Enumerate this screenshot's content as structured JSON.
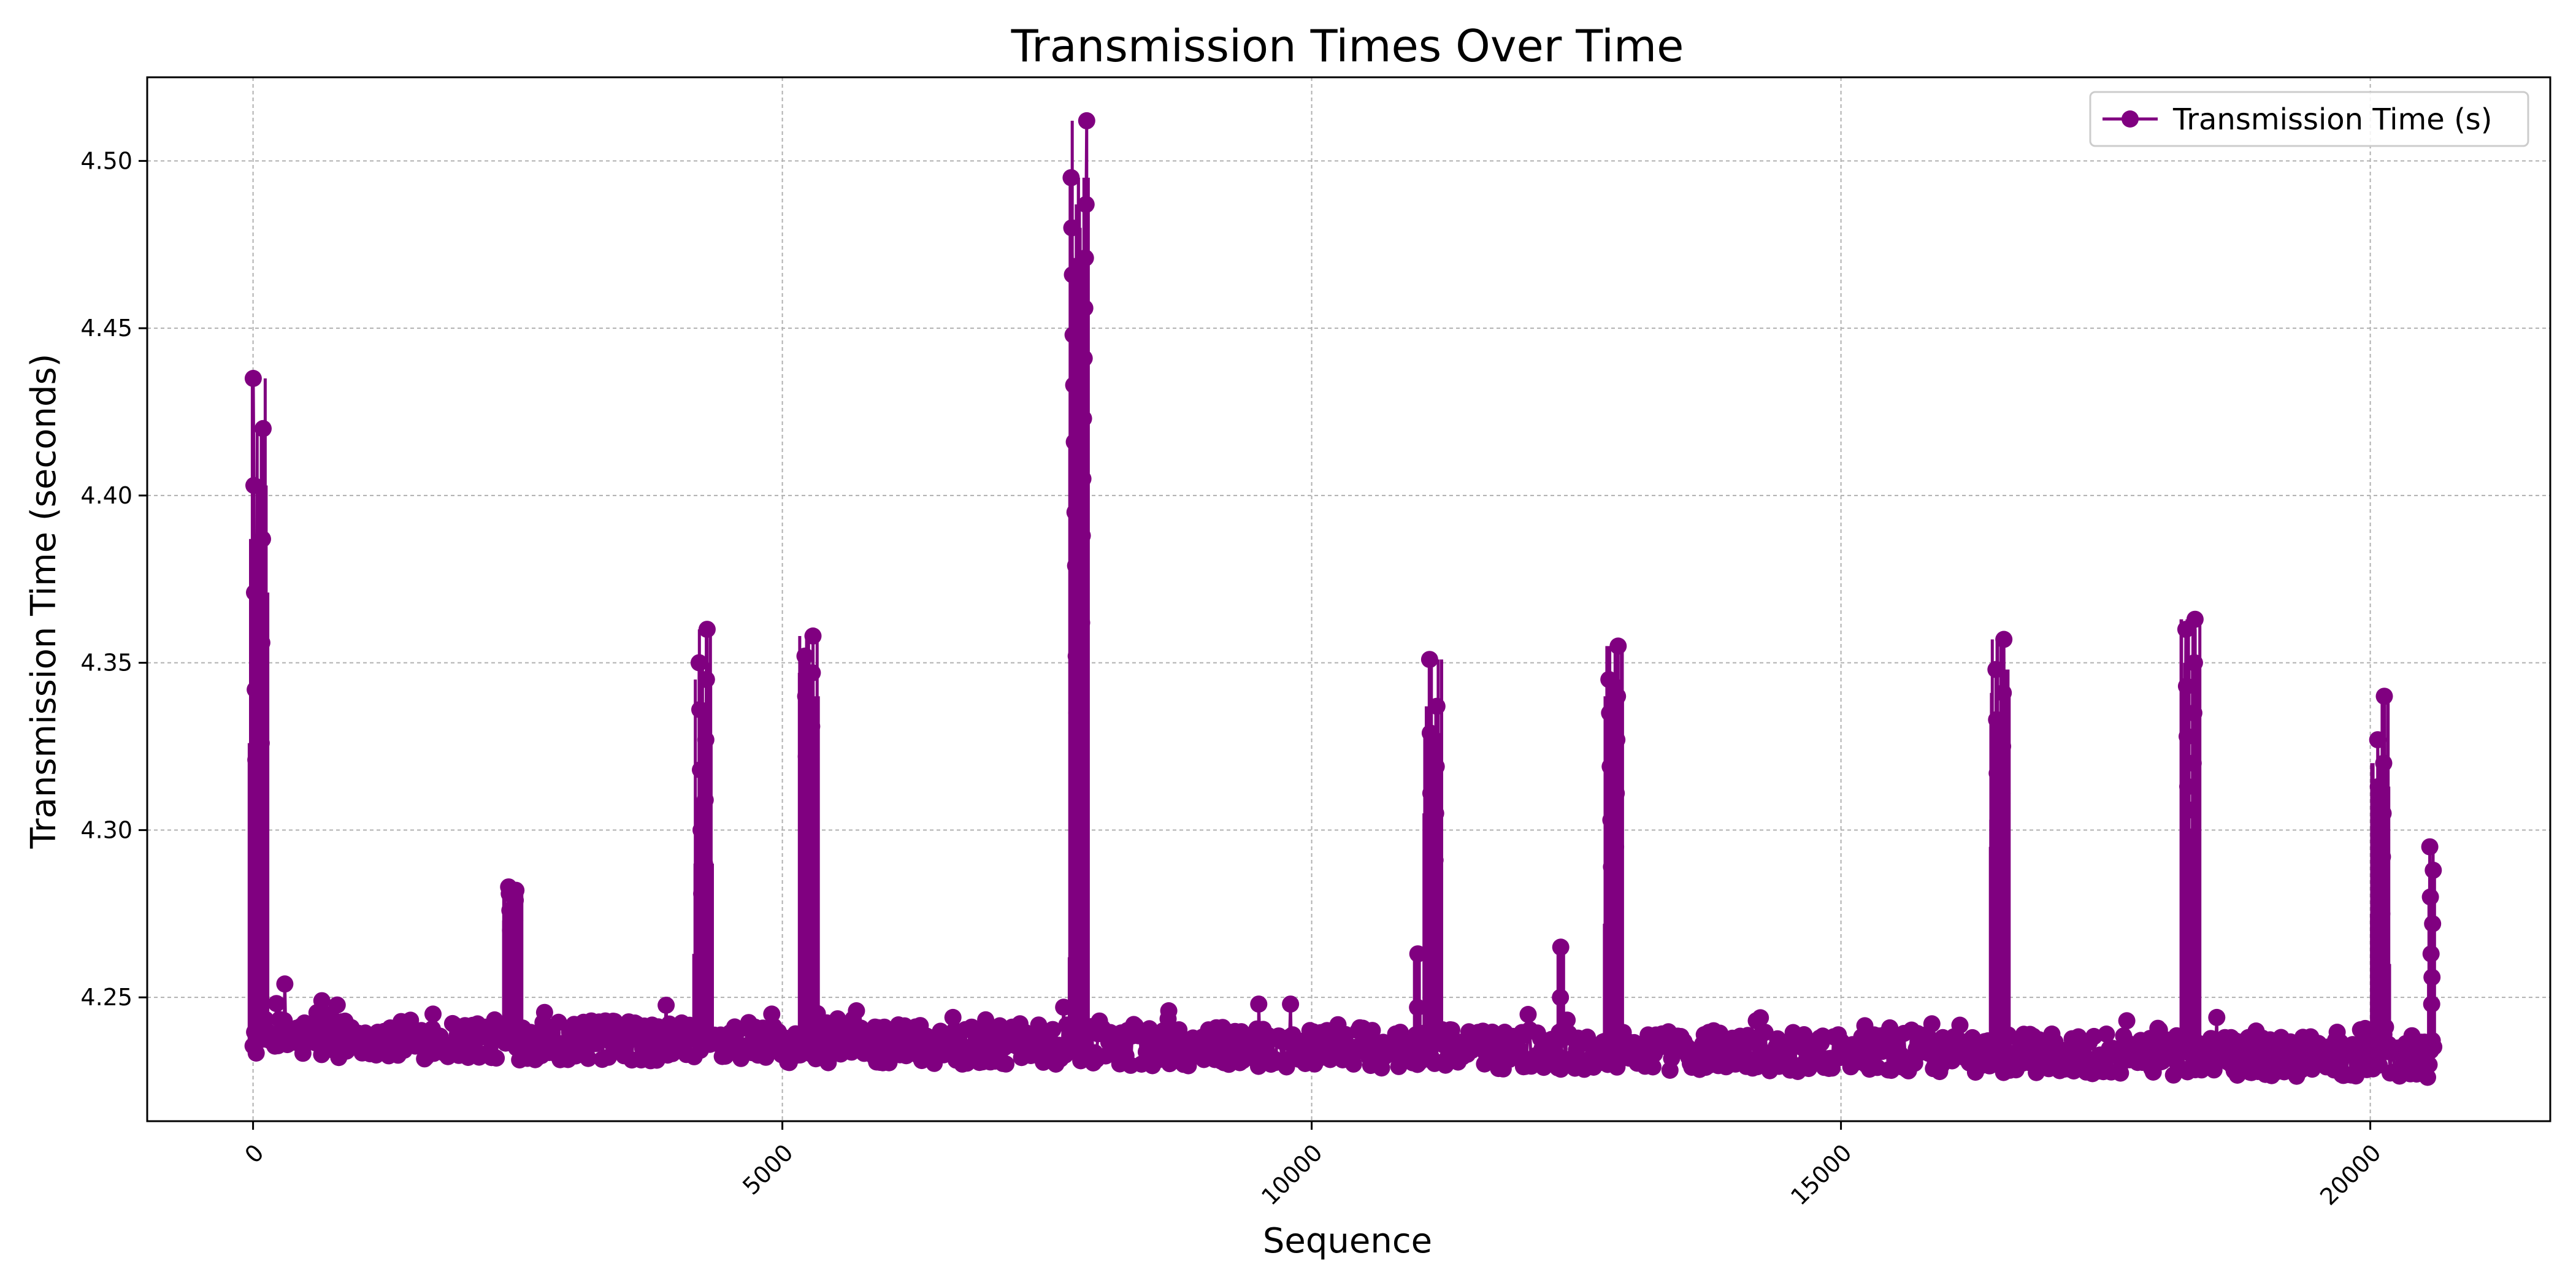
{
  "chart_data": {
    "type": "line",
    "title": "Transmission Times Over Time",
    "xlabel": "Sequence",
    "ylabel": "Transmission Time (seconds)",
    "xlim": [
      -1000,
      21700
    ],
    "ylim": [
      4.213,
      4.525
    ],
    "xticks": [
      0,
      5000,
      10000,
      15000,
      20000
    ],
    "xtick_labels": [
      "0",
      "5000",
      "10000",
      "15000",
      "20000"
    ],
    "xtick_rotation": 45,
    "yticks": [
      4.25,
      4.3,
      4.35,
      4.4,
      4.45,
      4.5
    ],
    "ytick_labels": [
      "4.25",
      "4.30",
      "4.35",
      "4.40",
      "4.45",
      "4.50"
    ],
    "grid": true,
    "legend_position": "top-right",
    "series": [
      {
        "name": "Transmission Time (s)",
        "color": "#800080",
        "marker": "circle",
        "approximate_point_count": 20600,
        "baseline": {
          "description": "dense band of points between about 4.229 and 4.245",
          "x_range": [
            0,
            20600
          ],
          "start_center": 4.238,
          "end_center": 4.232
        },
        "spikes": [
          {
            "x": 50,
            "peak": 4.435,
            "values": [
              4.249,
              4.261,
              4.277,
              4.28,
              4.293,
              4.297,
              4.305,
              4.31,
              4.321,
              4.326,
              4.342,
              4.356,
              4.371,
              4.387,
              4.403,
              4.42,
              4.435
            ]
          },
          {
            "x": 2450,
            "peak": 4.283,
            "values": [
              4.245,
              4.25,
              4.256,
              4.259,
              4.262,
              4.266,
              4.27,
              4.273,
              4.276,
              4.279,
              4.281,
              4.282,
              4.283
            ]
          },
          {
            "x": 4250,
            "peak": 4.36,
            "values": [
              4.247,
              4.255,
              4.263,
              4.272,
              4.281,
              4.29,
              4.3,
              4.309,
              4.318,
              4.327,
              4.336,
              4.345,
              4.35,
              4.36
            ]
          },
          {
            "x": 5250,
            "peak": 4.358,
            "values": [
              4.248,
              4.258,
              4.267,
              4.277,
              4.286,
              4.296,
              4.305,
              4.314,
              4.322,
              4.331,
              4.34,
              4.347,
              4.352,
              4.358
            ]
          },
          {
            "x": 7800,
            "peak": 4.512,
            "values": [
              4.252,
              4.262,
              4.275,
              4.29,
              4.305,
              4.32,
              4.335,
              4.343,
              4.352,
              4.362,
              4.379,
              4.388,
              4.395,
              4.405,
              4.416,
              4.423,
              4.433,
              4.441,
              4.448,
              4.456,
              4.466,
              4.471,
              4.48,
              4.487,
              4.495,
              4.512
            ]
          },
          {
            "x": 11000,
            "peak": 4.263,
            "values": [
              4.247,
              4.263
            ]
          },
          {
            "x": 11150,
            "peak": 4.351,
            "values": [
              4.25,
              4.258,
              4.265,
              4.279,
              4.287,
              4.291,
              4.296,
              4.305,
              4.311,
              4.319,
              4.329,
              4.337,
              4.351
            ]
          },
          {
            "x": 12350,
            "peak": 4.265,
            "values": [
              4.25,
              4.265
            ]
          },
          {
            "x": 12850,
            "peak": 4.355,
            "values": [
              4.245,
              4.252,
              4.259,
              4.264,
              4.272,
              4.28,
              4.289,
              4.295,
              4.303,
              4.311,
              4.319,
              4.327,
              4.335,
              4.34,
              4.345,
              4.355
            ]
          },
          {
            "x": 16500,
            "peak": 4.357,
            "values": [
              4.254,
              4.264,
              4.27,
              4.28,
              4.288,
              4.295,
              4.303,
              4.311,
              4.317,
              4.325,
              4.333,
              4.341,
              4.348,
              4.357
            ]
          },
          {
            "x": 18300,
            "peak": 4.363,
            "values": [
              4.25,
              4.258,
              4.266,
              4.274,
              4.282,
              4.291,
              4.298,
              4.306,
              4.313,
              4.32,
              4.328,
              4.335,
              4.343,
              4.35,
              4.36,
              4.363
            ]
          },
          {
            "x": 20100,
            "peak": 4.34,
            "values": [
              4.25,
              4.26,
              4.268,
              4.275,
              4.283,
              4.292,
              4.298,
              4.305,
              4.313,
              4.32,
              4.327,
              4.34
            ]
          },
          {
            "x": 20580,
            "peak": 4.295,
            "values": [
              4.248,
              4.256,
              4.263,
              4.272,
              4.28,
              4.288,
              4.295
            ]
          }
        ],
        "small_excursions": [
          {
            "x": 300,
            "value": 4.254
          },
          {
            "x": 650,
            "value": 4.249
          },
          {
            "x": 1700,
            "value": 4.245
          },
          {
            "x": 4900,
            "value": 4.245
          },
          {
            "x": 5700,
            "value": 4.246
          },
          {
            "x": 8650,
            "value": 4.246
          },
          {
            "x": 9500,
            "value": 4.248
          },
          {
            "x": 9800,
            "value": 4.248
          },
          {
            "x": 14200,
            "value": 4.243
          },
          {
            "x": 17700,
            "value": 4.243
          },
          {
            "x": 18550,
            "value": 4.244
          }
        ]
      }
    ]
  }
}
